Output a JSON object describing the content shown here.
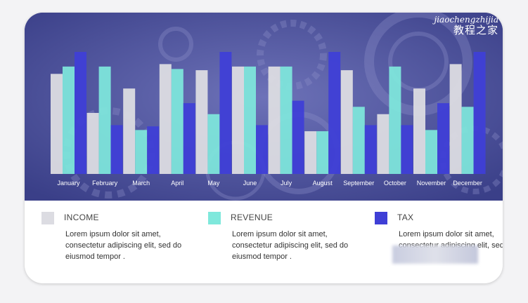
{
  "watermark": {
    "site": "jiaochengzhijia",
    "name": "教程之家"
  },
  "colors": {
    "panel": "#4a4f9c",
    "income": "#dcdce2",
    "revenue": "#7fe8dc",
    "tax": "#3f3fd6"
  },
  "legend": [
    {
      "label": "INCOME",
      "color": "#dcdce2",
      "text": "Lorem ipsum dolor sit amet, consectetur adipiscing elit, sed do eiusmod tempor ."
    },
    {
      "label": "REVENUE",
      "color": "#7fe8dc",
      "text": "Lorem ipsum dolor sit amet, consectetur adipiscing elit, sed do eiusmod tempor ."
    },
    {
      "label": "TAX",
      "color": "#3f3fd6",
      "text": "Lorem ipsum dolor sit amet, consectetur adipiscing elit, sed do eiusmod tempor ."
    }
  ],
  "chart_data": {
    "type": "bar",
    "title": "",
    "xlabel": "",
    "ylabel": "",
    "grid": false,
    "categories": [
      "January",
      "February",
      "March",
      "April",
      "May",
      "June",
      "July",
      "August",
      "September",
      "October",
      "November",
      "December"
    ],
    "ylim": [
      0,
      100
    ],
    "series": [
      {
        "name": "INCOME",
        "color": "#dcdce2",
        "values": [
          82,
          50,
          70,
          90,
          85,
          88,
          88,
          35,
          85,
          49,
          70,
          90
        ]
      },
      {
        "name": "REVENUE",
        "color": "#7fe8dc",
        "values": [
          88,
          88,
          36,
          86,
          49,
          88,
          88,
          35,
          55,
          88,
          36,
          55
        ]
      },
      {
        "name": "TAX",
        "color": "#3f3fd6",
        "values": [
          100,
          40,
          39,
          58,
          100,
          40,
          60,
          100,
          40,
          40,
          58,
          100
        ]
      }
    ]
  }
}
